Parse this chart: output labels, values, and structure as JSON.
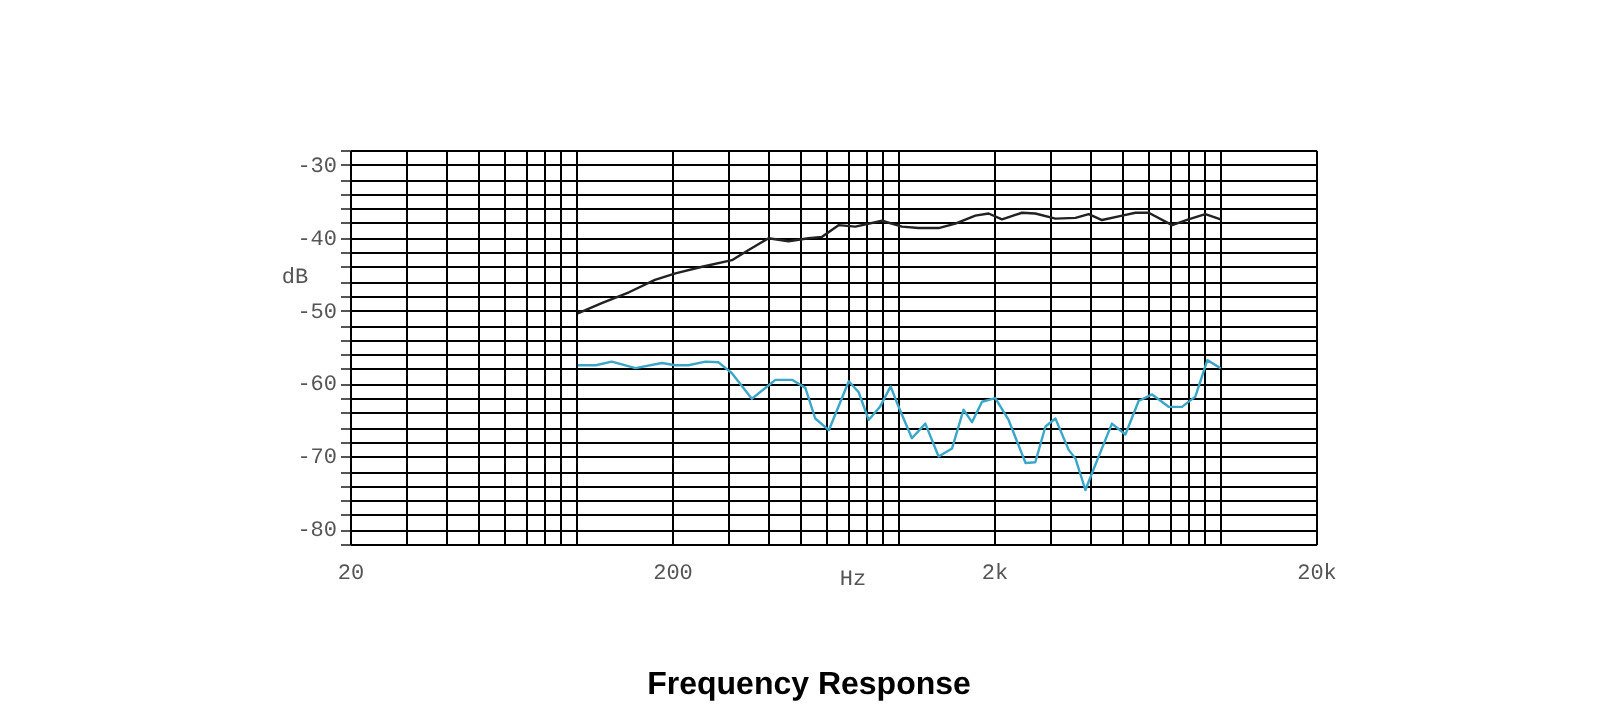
{
  "chart_data": {
    "type": "line",
    "title": "Frequency Response",
    "xlabel": "Hz",
    "ylabel": "dB",
    "log": "x",
    "grid": true,
    "legend": false,
    "line_style": "solid",
    "marker": "none",
    "xlim": [
      20,
      20000
    ],
    "ylim": [
      -82,
      -28
    ],
    "xticks": [
      20,
      {
        "value": 30,
        "label": null
      },
      {
        "value": 40,
        "label": null
      },
      {
        "value": 50,
        "label": null
      },
      {
        "value": 60,
        "label": null
      },
      {
        "value": 70,
        "label": null
      },
      {
        "value": 80,
        "label": null
      },
      {
        "value": 90,
        "label": null
      },
      {
        "value": 100,
        "label": null
      },
      200,
      {
        "value": 300,
        "label": null
      },
      {
        "value": 400,
        "label": null
      },
      {
        "value": 500,
        "label": null
      },
      {
        "value": 600,
        "label": null
      },
      {
        "value": 700,
        "label": null
      },
      {
        "value": 800,
        "label": null
      },
      {
        "value": 900,
        "label": null
      },
      {
        "value": 1000,
        "label": null
      },
      {
        "value": 2000,
        "label": "2k"
      },
      {
        "value": 3000,
        "label": null
      },
      {
        "value": 4000,
        "label": null
      },
      {
        "value": 5000,
        "label": null
      },
      {
        "value": 6000,
        "label": null
      },
      {
        "value": 7000,
        "label": null
      },
      {
        "value": 8000,
        "label": null
      },
      {
        "value": 9000,
        "label": null
      },
      {
        "value": 10000,
        "label": null
      },
      {
        "value": 20000,
        "label": "20k"
      }
    ],
    "yticks": [
      {
        "value": -82,
        "label": null
      },
      -80,
      {
        "value": -78,
        "label": null
      },
      {
        "value": -76,
        "label": null
      },
      {
        "value": -74,
        "label": null
      },
      {
        "value": -72,
        "label": null
      },
      -70,
      {
        "value": -68,
        "label": null
      },
      {
        "value": -66,
        "label": null
      },
      {
        "value": -64,
        "label": null
      },
      {
        "value": -62,
        "label": null
      },
      -60,
      {
        "value": -58,
        "label": null
      },
      {
        "value": -56,
        "label": null
      },
      {
        "value": -54,
        "label": null
      },
      {
        "value": -52,
        "label": null
      },
      -50,
      {
        "value": -48,
        "label": null
      },
      {
        "value": -46,
        "label": null
      },
      {
        "value": -44,
        "label": null
      },
      {
        "value": -42,
        "label": null
      },
      -40,
      {
        "value": -38,
        "label": null
      },
      {
        "value": -36,
        "label": null
      },
      {
        "value": -34,
        "label": null
      },
      {
        "value": -32,
        "label": null
      },
      -30,
      {
        "value": -28,
        "label": null
      }
    ],
    "series": [
      {
        "color": "#222222",
        "x": [
          102,
          121,
          147,
          177,
          205,
          248,
          307,
          346,
          399,
          460,
          531,
          585,
          658,
          742,
          898,
          1036,
          1166,
          1346,
          1517,
          1750,
          1924,
          2118,
          2443,
          2687,
          3103,
          3582,
          3937,
          4330,
          5000,
          5498,
          6046,
          7146,
          8037,
          9064,
          10115
        ],
        "values": [
          -50.4,
          -49.0,
          -47.5,
          -45.8,
          -44.9,
          -44.0,
          -43.1,
          -41.7,
          -40.1,
          -40.5,
          -40.1,
          -39.9,
          -38.3,
          -38.5,
          -37.7,
          -38.5,
          -38.7,
          -38.7,
          -38.1,
          -37.0,
          -36.7,
          -37.5,
          -36.6,
          -36.7,
          -37.4,
          -37.3,
          -36.8,
          -37.6,
          -37.0,
          -36.6,
          -36.6,
          -38.3,
          -37.5,
          -36.8,
          -37.5
        ]
      },
      {
        "color": "#3aa6c8",
        "x": [
          102,
          116,
          130,
          154,
          186,
          205,
          225,
          254,
          279,
          307,
          354,
          419,
          472,
          519,
          557,
          614,
          708,
          760,
          816,
          885,
          955,
          1011,
          1112,
          1224,
          1346,
          1482,
          1608,
          1709,
          1836,
          2019,
          2220,
          2506,
          2687,
          2890,
          3103,
          3411,
          3582,
          3845,
          4030,
          4647,
          5117,
          5626,
          6193,
          6970,
          7670,
          8439,
          9196,
          10115
        ],
        "values": [
          -57.5,
          -57.5,
          -57.0,
          -57.9,
          -57.2,
          -57.5,
          -57.5,
          -57.0,
          -57.1,
          -58.6,
          -62.1,
          -59.5,
          -59.5,
          -60.6,
          -64.8,
          -66.4,
          -59.7,
          -61.2,
          -65.0,
          -63.2,
          -60.4,
          -63.2,
          -67.5,
          -65.5,
          -70.0,
          -68.9,
          -63.6,
          -65.3,
          -62.5,
          -62.0,
          -65.0,
          -70.9,
          -70.8,
          -65.9,
          -64.8,
          -69.1,
          -70.3,
          -74.6,
          -72.3,
          -65.5,
          -67.0,
          -62.4,
          -61.5,
          -63.2,
          -63.2,
          -61.8,
          -56.8,
          -57.9
        ]
      }
    ]
  }
}
